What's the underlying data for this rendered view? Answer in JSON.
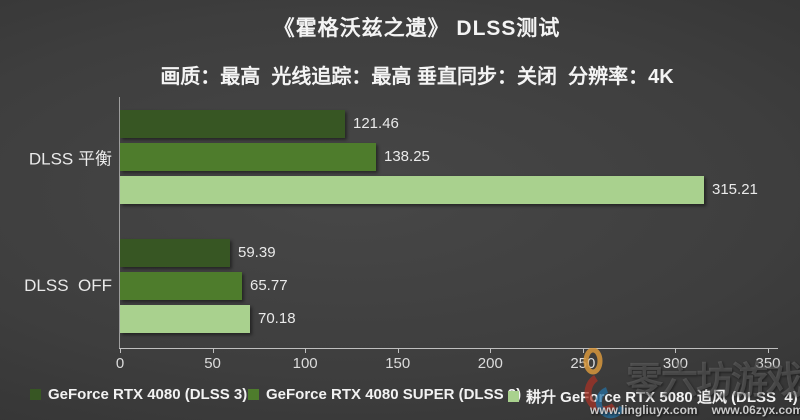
{
  "chart_data": {
    "type": "bar",
    "orientation": "horizontal",
    "title": "《霍格沃兹之遗》 DLSS测试",
    "subtitle": "画质：最高  光线追踪：最高 垂直同步：关闭  分辨率：4K",
    "categories": [
      "DLSS 平衡",
      "DLSS  OFF"
    ],
    "series": [
      {
        "name": "GeForce RTX 4080 (DLSS 3)",
        "color": "#375623",
        "values": [
          121.46,
          59.39
        ]
      },
      {
        "name": "GeForce RTX 4080 SUPER (DLSS 3)",
        "color": "#4E7C2C",
        "values": [
          138.25,
          65.77
        ]
      },
      {
        "name": "耕升 GeForce RTX 5080 追风 (DLSS  4)",
        "color": "#A9D18E",
        "values": [
          315.21,
          70.18
        ]
      }
    ],
    "xlim": [
      0,
      350
    ],
    "xticks": [
      0,
      50,
      100,
      150,
      200,
      250,
      300,
      350
    ],
    "grid": false,
    "legend_position": "bottom",
    "value_labels": true,
    "value_label_decimals": 2
  },
  "watermark": {
    "logo_icon": "zero-six-swirl-logo",
    "brand_text": "零六坊游戏",
    "urls": [
      "www.lingliuyx.com",
      "www.06zyx.com"
    ]
  },
  "colors": {
    "background_center": "#474747",
    "background_edge": "#2c2c2c",
    "text": "#f4f4f4",
    "axis": "#bfbfbf"
  }
}
